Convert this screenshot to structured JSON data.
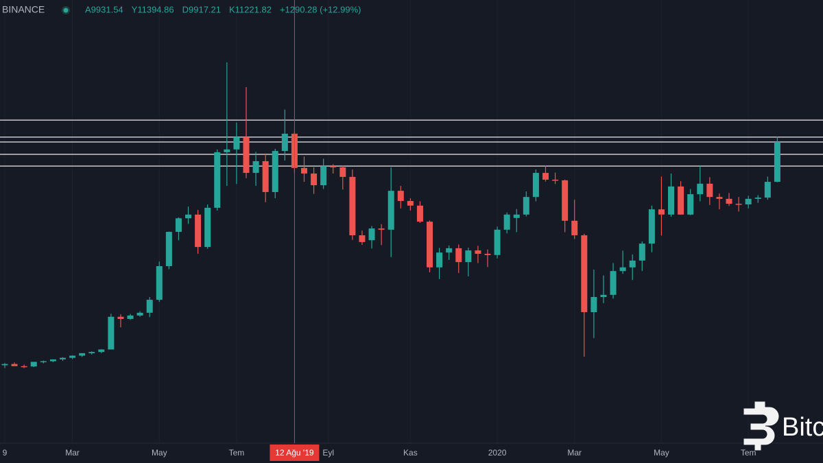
{
  "chart_data": {
    "type": "candlestick",
    "exchange": "BINANCE",
    "ohlc_labels": [
      "A9931.54",
      "Y11394.86",
      "D9917.21",
      "K11221.82",
      "+1290.28 (+12.99%)"
    ],
    "up_color": "#26a69a",
    "down_color": "#ef5350",
    "open": [
      3990,
      4030,
      3960,
      3950,
      4100,
      4120,
      4180,
      4230,
      4300,
      4380,
      4420,
      4500,
      5560,
      5490,
      5600,
      5690,
      6110,
      7200,
      8310,
      8750,
      8870,
      7820,
      9090,
      10890,
      10980,
      11380,
      10220,
      10600,
      9600,
      10930,
      11490,
      10380,
      10200,
      9820,
      10440,
      10400,
      10090,
      8200,
      8040,
      8420,
      8380,
      9640,
      9310,
      9160,
      8640,
      7160,
      7640,
      7780,
      7330,
      7710,
      7600,
      7560,
      8380,
      8760,
      8870,
      9440,
      10220,
      10000,
      9980,
      8670,
      8200,
      5710,
      6200,
      6270,
      7040,
      7160,
      7380,
      7930,
      9040,
      8870,
      9780,
      8870,
      9530,
      9870,
      9440,
      9380,
      9220,
      9200,
      9380,
      9420,
      9931.54
    ],
    "high": [
      4060,
      4080,
      4010,
      4100,
      4140,
      4180,
      4250,
      4310,
      4380,
      4440,
      4510,
      5660,
      5640,
      5650,
      5740,
      6200,
      7350,
      8320,
      8780,
      9130,
      9020,
      9200,
      10980,
      13800,
      11850,
      13000,
      10900,
      10850,
      11000,
      12270,
      11570,
      10750,
      10400,
      10680,
      10500,
      10450,
      10330,
      8350,
      8500,
      8560,
      10400,
      9800,
      9400,
      9300,
      8680,
      7790,
      7870,
      7900,
      7800,
      7860,
      7740,
      8480,
      8940,
      9050,
      9620,
      10330,
      10450,
      10230,
      10000,
      9350,
      8250,
      7090,
      6900,
      7300,
      7700,
      7580,
      8000,
      9160,
      10100,
      10200,
      9950,
      9700,
      10440,
      10080,
      9550,
      9570,
      9440,
      9480,
      9500,
      10100,
      11394.86
    ],
    "low": [
      3900,
      3980,
      3900,
      3930,
      4050,
      4090,
      4130,
      4190,
      4260,
      4340,
      4380,
      4500,
      5220,
      5460,
      5560,
      5550,
      6040,
      7100,
      8040,
      8570,
      7600,
      7760,
      9000,
      9800,
      9860,
      10050,
      9800,
      9270,
      9400,
      10620,
      10210,
      9930,
      9540,
      9700,
      10200,
      9680,
      8050,
      7890,
      7770,
      7880,
      7490,
      9070,
      9000,
      8600,
      7000,
      6780,
      7400,
      6980,
      6870,
      7300,
      7170,
      7450,
      8260,
      8300,
      8810,
      9300,
      9940,
      9860,
      8300,
      8080,
      4270,
      4870,
      6000,
      6150,
      6950,
      6750,
      7040,
      7650,
      8190,
      8800,
      8870,
      8850,
      9300,
      9180,
      9040,
      9150,
      8970,
      9070,
      9250,
      9350,
      9917.21
    ],
    "close": [
      4030,
      3960,
      3950,
      4100,
      4120,
      4180,
      4230,
      4300,
      4380,
      4420,
      4500,
      5560,
      5490,
      5600,
      5690,
      6110,
      7200,
      8310,
      8750,
      8870,
      7820,
      9090,
      10890,
      10980,
      11380,
      10220,
      10600,
      9600,
      10930,
      11490,
      10380,
      10200,
      9820,
      10440,
      10400,
      10090,
      8200,
      7980,
      8420,
      8380,
      9640,
      9310,
      9160,
      8640,
      7160,
      7640,
      7780,
      7330,
      7710,
      7600,
      7560,
      8380,
      8870,
      8870,
      9440,
      10220,
      10000,
      9980,
      8670,
      8200,
      5710,
      6200,
      6270,
      7040,
      7160,
      7380,
      7930,
      9040,
      8870,
      9780,
      8870,
      9530,
      9870,
      9440,
      9380,
      9220,
      9200,
      9380,
      9420,
      9930,
      11221.82
    ],
    "ylim": [
      1490,
      15820
    ],
    "levels": [
      11930,
      11380,
      11220,
      10820,
      10440
    ],
    "xticks": [
      {
        "value": 0,
        "label": "9"
      },
      {
        "value": 7,
        "label": "Mar"
      },
      {
        "value": 16,
        "label": "May"
      },
      {
        "value": 24,
        "label": "Tem"
      },
      {
        "value": 33.5,
        "label": "Eyl"
      },
      {
        "value": 42,
        "label": "Kas"
      },
      {
        "value": 51,
        "label": "2020"
      },
      {
        "value": 59,
        "label": "Mar"
      },
      {
        "value": 68,
        "label": "May"
      },
      {
        "value": 77,
        "label": "Tem"
      }
    ],
    "crosshair": {
      "x": 30,
      "label": "12 Ağu '19"
    },
    "watermark": "Bitc"
  }
}
